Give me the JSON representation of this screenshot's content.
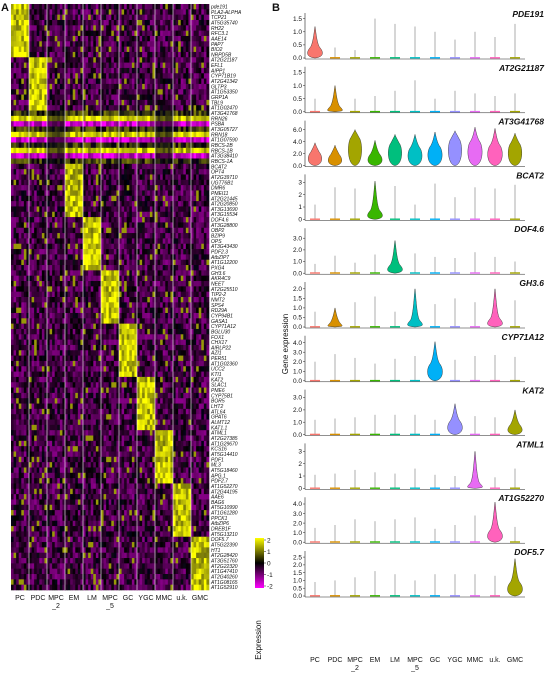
{
  "chart_data": [
    {
      "panel": "A",
      "type": "heatmap",
      "xlabel": "",
      "ylabel": "",
      "categories": [
        "PC",
        "PDC",
        "MPC_2",
        "EM",
        "LM",
        "MPC_5",
        "GC",
        "YGC",
        "MMC",
        "u.k.",
        "GMC"
      ],
      "category_labels": [
        [
          "PC"
        ],
        [
          "PDC"
        ],
        [
          "MPC",
          "_2"
        ],
        [
          "EM"
        ],
        [
          "LM"
        ],
        [
          "MPC",
          "_5"
        ],
        [
          "GC"
        ],
        [
          "YGC"
        ],
        [
          "MMC"
        ],
        [
          "u.k."
        ],
        [
          "GMC"
        ]
      ],
      "legend": {
        "title": "Expression",
        "ticks": [
          2,
          1,
          0,
          -1,
          -2
        ],
        "colors": [
          "#ffff00",
          "#000000",
          "#ff00ff"
        ]
      },
      "genes": [
        "pde191",
        "PLA2-ALPHA",
        "TCP21",
        "AT5G35740",
        "RH22",
        "RFC3.1",
        "AAE14",
        "PAP7",
        "BIO2",
        "NRPD5B",
        "AT2G21187",
        "EFL1",
        "AIPP1",
        "CYP71B19",
        "AT2G41342",
        "GLTP3",
        "AT1G53350",
        "GRP1A",
        "TBL9",
        "AT1G02470",
        "AT3G41768",
        "RRN26",
        "PSBA",
        "AT3G05727",
        "RRN18",
        "AT1G07590",
        "RBCS-2B",
        "RBCS-1B",
        "AT3G38410",
        "RBCS-1A",
        "BCAT2",
        "OPT4",
        "AT2G39710",
        "UGT76B1",
        "DMR6",
        "PMEI11",
        "AT2G21445",
        "AT2G20850",
        "AT3G13690",
        "AT3G15534",
        "DOF4.6",
        "AT3G28800",
        "OBP2",
        "BZIP9",
        "OPS",
        "AT3G43430",
        "PDF2.3",
        "AtbZIP7",
        "AT1G12200",
        "PXG4",
        "GH3.6",
        "AKR4C9",
        "NEET",
        "AT2G25510",
        "TIP2-2",
        "NMT2",
        "SPS4",
        "RD29A",
        "CYP94B1",
        "GASA1",
        "CYP71A12",
        "BGLU30",
        "FOX1",
        "CHX17",
        "AIRLP22",
        "AZI1",
        "PER51",
        "AT1G02360",
        "UCC2",
        "KTI1",
        "KAT2",
        "SLAC1",
        "PME6",
        "CYP75B1",
        "BOR5",
        "LHT2",
        "ATL64",
        "GPAT6",
        "ALMT12",
        "KAT1.1",
        "ATML1",
        "AT2G27385",
        "AT1G29670",
        "KCS16",
        "AT5G14410",
        "PDF1",
        "ML3",
        "AT5G18460",
        "APG.1",
        "PDF2.7",
        "AT1G52270",
        "AT2G44195",
        "AAE6",
        "BAG6",
        "AT5G10990",
        "AT1G61280",
        "PPCK1",
        "AtbZIP6",
        "DREB1F",
        "AT5G13210",
        "DOF5.7",
        "AT5G22390",
        "HT1",
        "AT2G28420",
        "AT3G51760",
        "AT2G22320",
        "AT1G47410",
        "AT2G40260",
        "AT1G08165",
        "AT1G52910"
      ]
    },
    {
      "panel": "B",
      "type": "violin",
      "xlabel": "",
      "ylabel": "Gene expression",
      "categories": [
        "PC",
        "PDC",
        "MPC_2",
        "EM",
        "LM",
        "MPC_5",
        "GC",
        "YGC",
        "MMC",
        "u.k.",
        "GMC"
      ],
      "category_labels": [
        [
          "PC"
        ],
        [
          "PDC"
        ],
        [
          "MPC",
          "_2"
        ],
        [
          "EM"
        ],
        [
          "LM"
        ],
        [
          "MPC",
          "_5"
        ],
        [
          "GC"
        ],
        [
          "YGC"
        ],
        [
          "MMC"
        ],
        [
          "u.k."
        ],
        [
          "GMC"
        ]
      ],
      "colors": [
        "#f8766d",
        "#d89000",
        "#a3a500",
        "#39b600",
        "#00bf7d",
        "#00bfc4",
        "#00b0f6",
        "#9590ff",
        "#e76bf3",
        "#ff62bc",
        "#a3a500"
      ],
      "series": [
        {
          "name": "PDE191",
          "yticks": [
            "0.0",
            "0.5",
            "1.0",
            "1.5"
          ],
          "ylim": [
            0,
            1.6
          ],
          "medians": [
            0.3,
            0.02,
            0.02,
            0.02,
            0.02,
            0.02,
            0.02,
            0.02,
            0.02,
            0.02,
            0.02
          ],
          "max": [
            1.2,
            0.4,
            0.3,
            1.5,
            1.3,
            1.2,
            1.0,
            0.7,
            1.0,
            0.8,
            1.3
          ]
        },
        {
          "name": "AT2G21187",
          "yticks": [
            "0.0",
            "0.5",
            "1.0",
            "1.5"
          ],
          "ylim": [
            0,
            1.6
          ],
          "medians": [
            0.02,
            0.1,
            0.02,
            0.02,
            0.02,
            0.02,
            0.02,
            0.02,
            0.02,
            0.02,
            0.02
          ],
          "max": [
            0.5,
            1.0,
            0.5,
            0.6,
            0.8,
            1.2,
            0.5,
            0.8,
            0.7,
            0.6,
            0.7
          ]
        },
        {
          "name": "AT3G41768",
          "yticks": [
            "0.0",
            "2.0",
            "4.0",
            "6.0"
          ],
          "ylim": [
            0,
            7
          ],
          "medians": [
            1.8,
            1.4,
            4.2,
            1.5,
            3.3,
            2.6,
            2.8,
            4.0,
            3.6,
            3.0,
            3.3
          ],
          "max": [
            3.8,
            3.4,
            6.0,
            4.2,
            5.2,
            5.2,
            5.6,
            5.8,
            6.4,
            6.2,
            5.4
          ]
        },
        {
          "name": "BCAT2",
          "yticks": [
            "0",
            "1",
            "2",
            "3"
          ],
          "ylim": [
            0,
            3.4
          ],
          "medians": [
            0.02,
            0.02,
            0.02,
            0.5,
            0.02,
            0.02,
            0.02,
            0.02,
            0.02,
            0.02,
            0.02
          ],
          "max": [
            1.2,
            2.6,
            2.5,
            3.1,
            2.7,
            1.2,
            2.9,
            1.8,
            2.6,
            2.5,
            2.8
          ]
        },
        {
          "name": "DOF4.6",
          "yticks": [
            "0.0",
            "1.0",
            "2.0",
            "3.0"
          ],
          "ylim": [
            0,
            3.6
          ],
          "medians": [
            0.02,
            0.02,
            0.02,
            0.02,
            0.5,
            0.02,
            0.02,
            0.02,
            0.02,
            0.02,
            0.02
          ],
          "max": [
            0.8,
            1.5,
            0.9,
            1.6,
            2.8,
            1.7,
            1.4,
            1.3,
            1.8,
            1.4,
            1.0
          ]
        },
        {
          "name": "GH3.6",
          "yticks": [
            "0.0",
            "0.5",
            "1.0",
            "1.5",
            "2.0"
          ],
          "ylim": [
            0,
            2.2
          ],
          "medians": [
            0.02,
            0.1,
            0.02,
            0.02,
            0.02,
            0.2,
            0.02,
            0.02,
            0.02,
            0.3,
            0.02
          ],
          "max": [
            0.8,
            1.0,
            1.3,
            1.6,
            0.8,
            2.0,
            1.2,
            1.5,
            1.3,
            2.0,
            1.4
          ]
        },
        {
          "name": "CYP71A12",
          "yticks": [
            "0.0",
            "1.0",
            "2.0",
            "3.0",
            "4.0"
          ],
          "ylim": [
            0,
            4.4
          ],
          "medians": [
            0.02,
            0.02,
            0.02,
            0.02,
            0.02,
            0.02,
            1.5,
            0.02,
            0.02,
            0.02,
            0.02
          ],
          "max": [
            2.0,
            2.8,
            2.4,
            1.8,
            2.3,
            2.6,
            4.1,
            2.2,
            2.6,
            2.7,
            2.5
          ]
        },
        {
          "name": "KAT2",
          "yticks": [
            "0.0",
            "1.0",
            "2.0",
            "3.0"
          ],
          "ylim": [
            0,
            3.4
          ],
          "medians": [
            0.02,
            0.02,
            0.02,
            0.02,
            0.02,
            0.02,
            0.02,
            0.9,
            0.02,
            0.02,
            0.6
          ],
          "max": [
            1.2,
            1.3,
            1.4,
            1.6,
            1.6,
            1.6,
            1.2,
            2.5,
            1.5,
            1.4,
            2.0
          ]
        },
        {
          "name": "ATML1",
          "yticks": [
            "0",
            "1",
            "2",
            "3"
          ],
          "ylim": [
            0,
            3.4
          ],
          "medians": [
            0.02,
            0.02,
            0.02,
            0.02,
            0.02,
            0.02,
            0.02,
            0.02,
            0.2,
            0.02,
            0.02
          ],
          "max": [
            1.1,
            1.2,
            1.5,
            1.3,
            1.2,
            1.6,
            1.1,
            1.0,
            3.0,
            0.9,
            1.6
          ]
        },
        {
          "name": "AT1G52270",
          "yticks": [
            "0.0",
            "1.0",
            "2.0",
            "3.0",
            "4.0"
          ],
          "ylim": [
            0,
            4.4
          ],
          "medians": [
            0.02,
            0.02,
            0.02,
            0.02,
            0.02,
            0.02,
            0.02,
            0.02,
            0.02,
            1.0,
            0.02
          ],
          "max": [
            1.5,
            1.8,
            2.4,
            2.2,
            2.4,
            2.6,
            1.4,
            1.8,
            2.8,
            4.2,
            1.6
          ]
        },
        {
          "name": "DOF5.7",
          "yticks": [
            "0.0",
            "0.5",
            "1.0",
            "1.5",
            "2.0",
            "2.5"
          ],
          "ylim": [
            0,
            2.7
          ],
          "medians": [
            0.02,
            0.02,
            0.02,
            0.02,
            0.02,
            0.02,
            0.02,
            0.02,
            0.02,
            0.02,
            0.7
          ],
          "max": [
            0.9,
            1.0,
            1.2,
            1.6,
            1.4,
            1.0,
            1.4,
            1.4,
            1.4,
            1.3,
            2.4
          ]
        }
      ]
    }
  ],
  "panel_labels": {
    "a": "A",
    "b": "B"
  }
}
